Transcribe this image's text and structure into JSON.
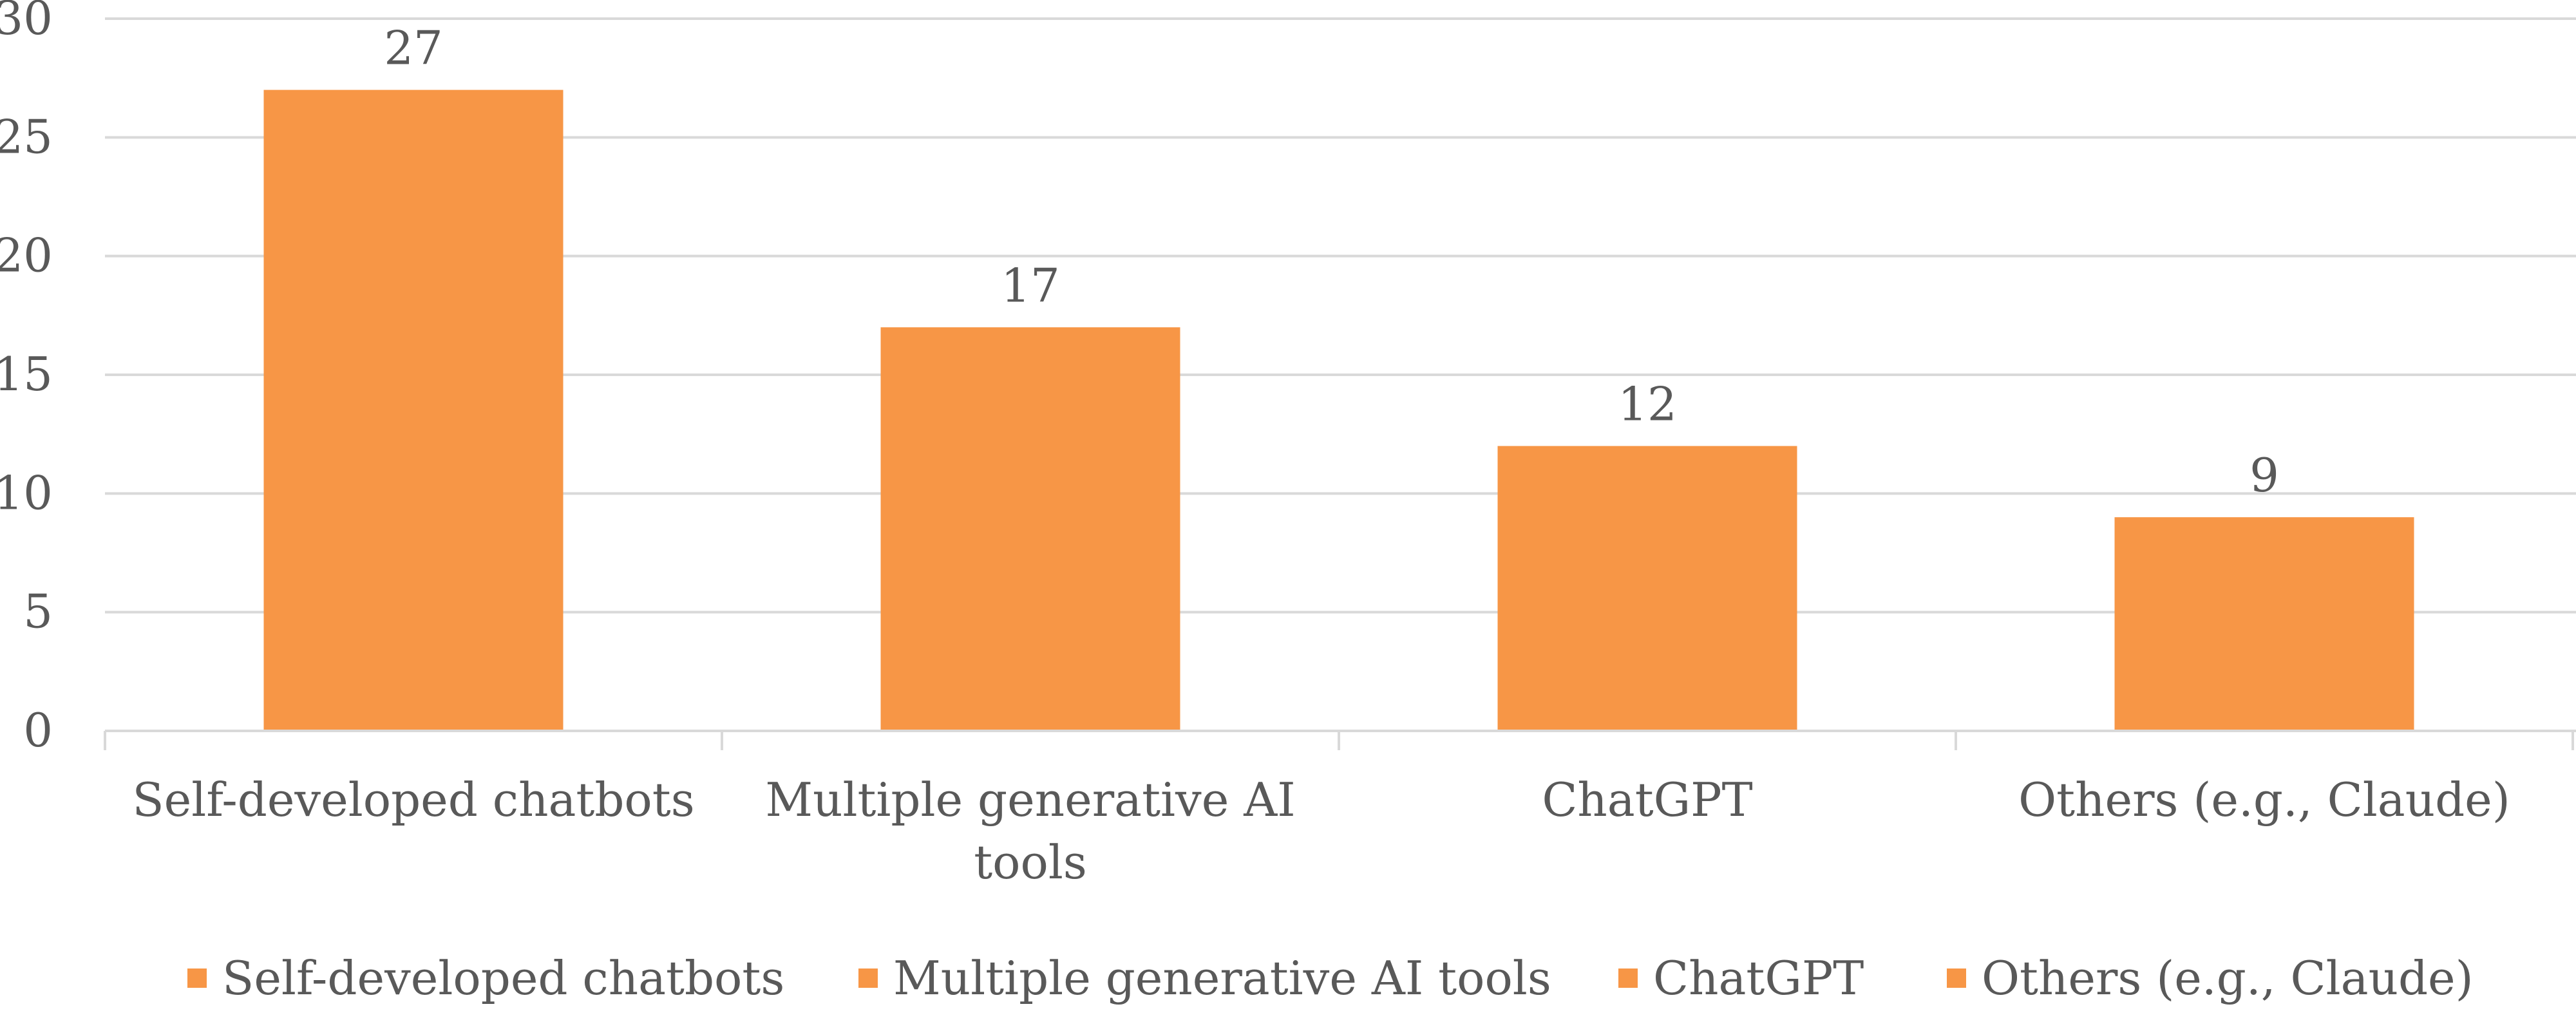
{
  "chart_data": {
    "type": "bar",
    "title": "",
    "xlabel": "",
    "ylabel": "",
    "categories": [
      "Self-developed chatbots",
      "Multiple generative AI tools",
      "ChatGPT",
      "Others (e.g., Claude)"
    ],
    "category_label_lines": [
      [
        "Self-developed chatbots"
      ],
      [
        "Multiple generative AI",
        "tools"
      ],
      [
        "ChatGPT"
      ],
      [
        "Others (e.g., Claude)"
      ]
    ],
    "values": [
      27,
      17,
      12,
      9
    ],
    "data_labels": [
      "27",
      "17",
      "12",
      "9"
    ],
    "ylim": [
      0,
      30
    ],
    "y_ticks": [
      0,
      5,
      10,
      15,
      20,
      25,
      30
    ],
    "y_tick_labels": [
      "0",
      "5",
      "10",
      "15",
      "20",
      "25",
      "30"
    ],
    "grid": true,
    "legend": {
      "position": "bottom",
      "entries": [
        "Self-developed chatbots",
        "Multiple generative AI tools",
        "ChatGPT",
        "Others (e.g., Claude)"
      ]
    },
    "colors": {
      "bar": "#F79646",
      "grid": "#D9D9D9",
      "axis": "#D9D9D9",
      "text": "#595959"
    }
  }
}
